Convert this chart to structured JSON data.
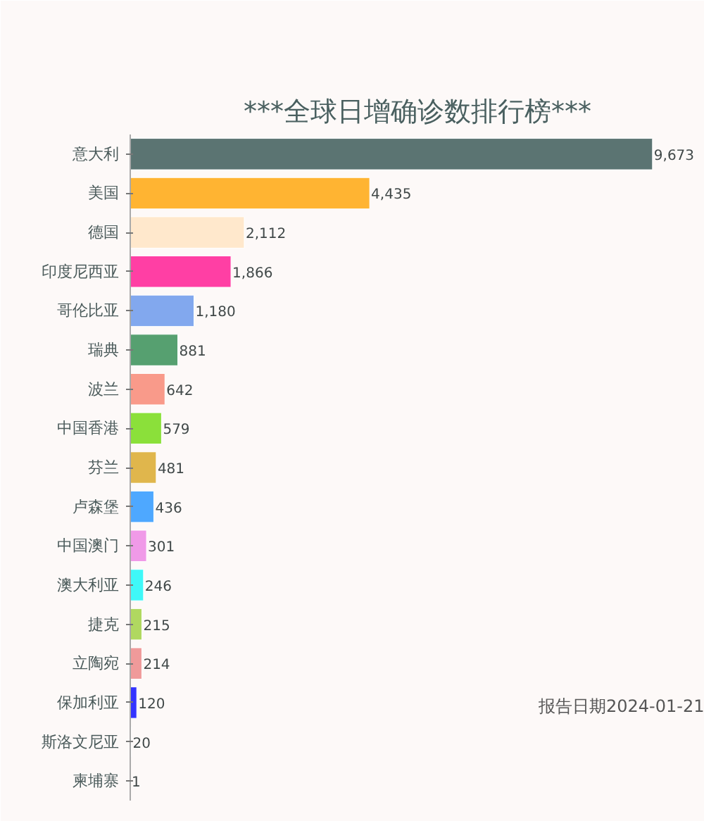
{
  "chart_data": {
    "type": "bar",
    "orientation": "horizontal",
    "title": "***全球日增确诊数排行榜***",
    "categories": [
      "意大利",
      "美国",
      "德国",
      "印度尼西亚",
      "哥伦比亚",
      "瑞典",
      "波兰",
      "中国香港",
      "芬兰",
      "卢森堡",
      "中国澳门",
      "澳大利亚",
      "捷克",
      "立陶宛",
      "保加利亚",
      "斯洛文尼亚",
      "柬埔寨"
    ],
    "values": [
      9673,
      4435,
      2112,
      1866,
      1180,
      881,
      642,
      579,
      481,
      436,
      301,
      246,
      215,
      214,
      120,
      20,
      1
    ],
    "colors": [
      "#5b7472",
      "#ffb432",
      "#ffe8cc",
      "#ff3fa4",
      "#82a8ee",
      "#56a070",
      "#f99a8a",
      "#8be03a",
      "#e0b64c",
      "#4ea8ff",
      "#f09ae8",
      "#3ff8f8",
      "#b0d860",
      "#f09a9a",
      "#3333ff",
      "#a0b0b0",
      "#cccccc"
    ],
    "value_labels": [
      "9,673",
      "4,435",
      "2,112",
      "1,866",
      "1,180",
      "881",
      "642",
      "579",
      "481",
      "436",
      "301",
      "246",
      "215",
      "214",
      "120",
      "20",
      "1"
    ],
    "grid": false,
    "annotations": [
      "报告日期2024-01-21"
    ]
  }
}
